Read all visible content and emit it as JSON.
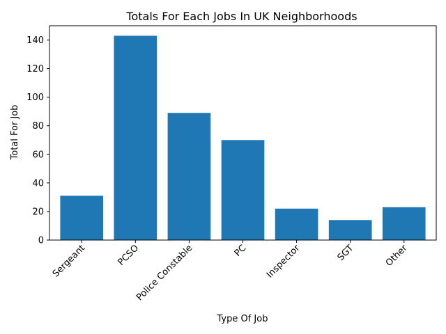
{
  "chart_data": {
    "type": "bar",
    "title": "Totals For Each Jobs In UK Neighborhoods",
    "xlabel": "Type Of Job",
    "ylabel": "Total For Job",
    "categories": [
      "Sergeant",
      "PCSO",
      "Police Constable",
      "PC",
      "Inspector",
      "SGT",
      "Other"
    ],
    "values": [
      31,
      143,
      89,
      70,
      22,
      14,
      23
    ],
    "ylim": [
      0,
      150
    ],
    "yticks": [
      0,
      20,
      40,
      60,
      80,
      100,
      120,
      140
    ],
    "bar_color": "#1f77b4",
    "grid": false,
    "legend": "none"
  }
}
